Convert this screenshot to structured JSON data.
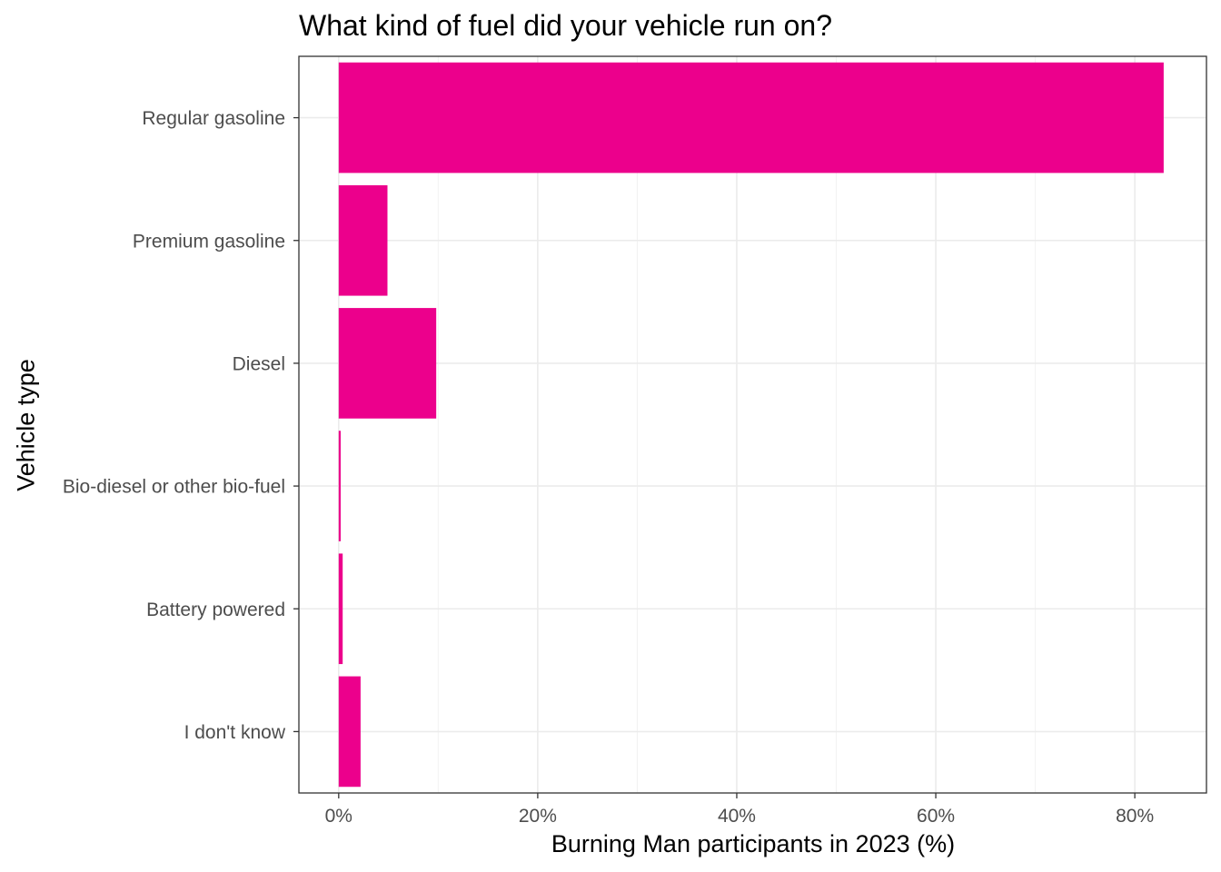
{
  "chart_data": {
    "type": "bar",
    "orientation": "horizontal",
    "title": "What kind of fuel did your vehicle run on?",
    "xlabel": "Burning Man participants in 2023 (%)",
    "ylabel": "Vehicle type",
    "categories": [
      "Regular gasoline",
      "Premium gasoline",
      "Diesel",
      "Bio-diesel or other bio-fuel",
      "Battery powered",
      "I don't know"
    ],
    "values": [
      82.9,
      4.9,
      9.8,
      0.2,
      0.4,
      2.2
    ],
    "x_ticks": [
      0,
      20,
      40,
      60,
      80
    ],
    "x_tick_labels": [
      "0%",
      "20%",
      "40%",
      "60%",
      "80%"
    ],
    "xlim": [
      -4.0,
      87.2
    ],
    "bar_color": "#EC008C",
    "grid": true,
    "legend": "none"
  }
}
